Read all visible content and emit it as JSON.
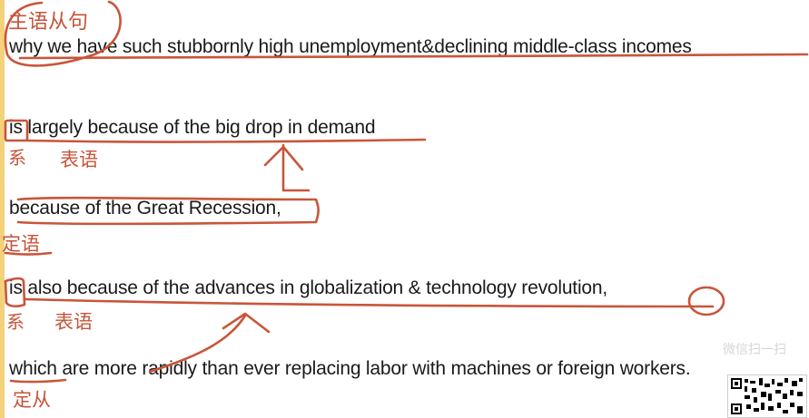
{
  "sentences": {
    "line1": "why we have such stubbornly high unemployment&declining middle-class incomes",
    "line2": "is largely because of the big drop in demand",
    "line3": "because of the Great Recession,",
    "line4": "is also because of the advances in globalization & technology revolution,",
    "line5": "which are more rapidly than ever replacing labor with machines or foreign workers."
  },
  "annotations": {
    "subject_clause": "主语从句",
    "copula_1": "系",
    "predicative_1": "表语",
    "attributive": "定语",
    "copula_2": "系",
    "predicative_2": "表语",
    "attributive_clause": "定从"
  },
  "watermark": {
    "text": "微信扫一扫"
  },
  "colors": {
    "ink": "#c9553a",
    "text": "#1a1a1a",
    "left_bar": "#f3d27a"
  }
}
